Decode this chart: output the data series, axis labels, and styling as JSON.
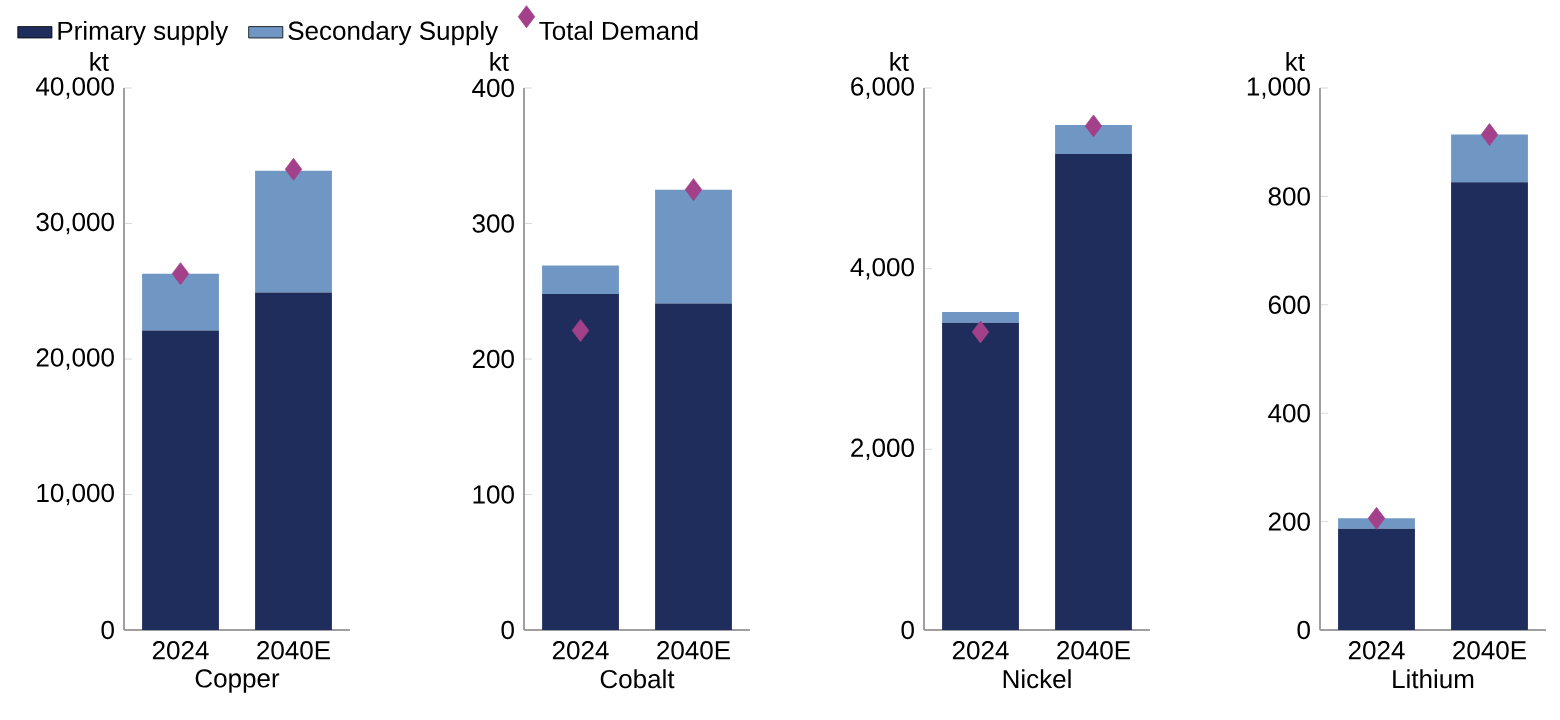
{
  "chart_data": [
    {
      "type": "bar",
      "stacked": true,
      "xlabel": "Copper",
      "ylabel": "kt",
      "categories": [
        "2024",
        "2040E"
      ],
      "legend": "top",
      "grid": false,
      "ylim": [
        0,
        40000
      ],
      "yticks": [
        0,
        {
          "value": 10000,
          "label": "10,000"
        },
        {
          "value": 20000,
          "label": "20,000"
        },
        {
          "value": 30000,
          "label": "30,000"
        },
        {
          "value": 40000,
          "label": "40,000"
        }
      ],
      "series": [
        {
          "name": "Primary supply",
          "color": "#1f2d5c",
          "values": [
            22100,
            24900
          ]
        },
        {
          "name": "Secondary Supply",
          "color": "#7097c4",
          "values": [
            4200,
            9000
          ]
        },
        {
          "name": "Total Demand",
          "type": "scatter",
          "marker": "diamond",
          "color": "#a2418a",
          "values": [
            26300,
            34000
          ]
        }
      ]
    },
    {
      "type": "bar",
      "stacked": true,
      "xlabel": "Cobalt",
      "ylabel": "kt",
      "categories": [
        "2024",
        "2040E"
      ],
      "grid": false,
      "ylim": [
        0,
        400
      ],
      "yticks": [
        0,
        100,
        200,
        300,
        400
      ],
      "series": [
        {
          "color": "#1f2d5c",
          "values": [
            248,
            241
          ]
        },
        {
          "color": "#7097c4",
          "values": [
            21,
            84
          ]
        },
        {
          "type": "scatter",
          "marker": "diamond",
          "color": "#a2418a",
          "values": [
            221,
            325
          ]
        }
      ]
    },
    {
      "type": "bar",
      "stacked": true,
      "xlabel": "Nickel",
      "ylabel": "kt",
      "categories": [
        "2024",
        "2040E"
      ],
      "grid": false,
      "ylim": [
        0,
        6000
      ],
      "yticks": [
        0,
        {
          "value": 2000,
          "label": "2,000"
        },
        {
          "value": 4000,
          "label": "4,000"
        },
        {
          "value": 6000,
          "label": "6,000"
        }
      ],
      "series": [
        {
          "color": "#1f2d5c",
          "values": [
            3400,
            5270
          ]
        },
        {
          "color": "#7097c4",
          "values": [
            120,
            320
          ]
        },
        {
          "type": "scatter",
          "marker": "diamond",
          "color": "#a2418a",
          "values": [
            3300,
            5580
          ]
        }
      ]
    },
    {
      "type": "bar",
      "stacked": true,
      "xlabel": "Lithium",
      "ylabel": "kt",
      "categories": [
        "2024",
        "2040E"
      ],
      "grid": false,
      "ylim": [
        0,
        1000
      ],
      "yticks": [
        0,
        200,
        400,
        600,
        800,
        {
          "value": 1000,
          "label": "1,000"
        }
      ],
      "series": [
        {
          "color": "#1f2d5c",
          "values": [
            187,
            826
          ]
        },
        {
          "color": "#7097c4",
          "values": [
            19,
            88
          ]
        },
        {
          "type": "scatter",
          "marker": "diamond",
          "color": "#a2418a",
          "values": [
            206,
            914
          ]
        }
      ]
    }
  ]
}
